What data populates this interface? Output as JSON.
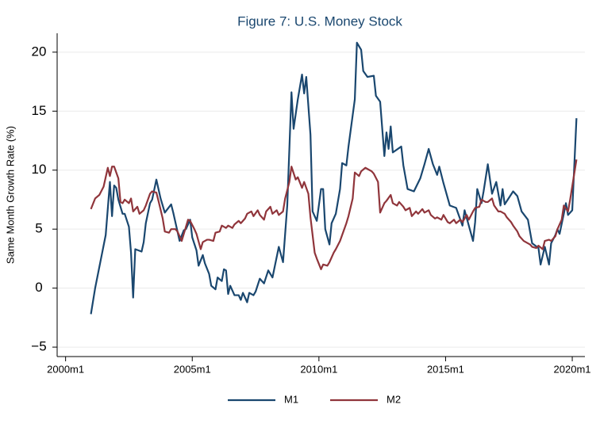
{
  "chart_data": {
    "type": "line",
    "title": "Figure 7: U.S. Money Stock",
    "y_label": "Same Month Growth Rate (%)",
    "xlim": [
      476,
      726
    ],
    "ylim": [
      -5.8,
      21.6
    ],
    "xticks": [
      {
        "value": 480,
        "label": "2000m1"
      },
      {
        "value": 540,
        "label": "2005m1"
      },
      {
        "value": 600,
        "label": "2010m1"
      },
      {
        "value": 660,
        "label": "2015m1"
      },
      {
        "value": 720,
        "label": "2020m1"
      }
    ],
    "yticks": [
      {
        "value": -5,
        "label": "−5"
      },
      0,
      5,
      10,
      15,
      20
    ],
    "grid": true,
    "legend": "bottom",
    "series": [
      {
        "name": "M1",
        "color": "#1a476f",
        "x": [
          492,
          494,
          499,
          501,
          502,
          503,
          504,
          505,
          507,
          508,
          510,
          511,
          512,
          513,
          516,
          517,
          518,
          520,
          521,
          523,
          525,
          527,
          530,
          531,
          533,
          534,
          536,
          537,
          539,
          540,
          542,
          543,
          545,
          546,
          548,
          549,
          551,
          552,
          554,
          555,
          556,
          557,
          558,
          560,
          562,
          563,
          564,
          566,
          567,
          569,
          570,
          572,
          574,
          576,
          578,
          581,
          583,
          585,
          587,
          588,
          590,
          592,
          593,
          594,
          596,
          597,
          599,
          601,
          602,
          603,
          605,
          606,
          608,
          610,
          611,
          613,
          614,
          617,
          618,
          620,
          621,
          623,
          626,
          627,
          629,
          631,
          632,
          633,
          634,
          635,
          639,
          640,
          642,
          645,
          648,
          650,
          652,
          654,
          656,
          657,
          659,
          662,
          665,
          668,
          669,
          673,
          674,
          675,
          677,
          678,
          680,
          682,
          684,
          686,
          687,
          688,
          692,
          694,
          696,
          699,
          701,
          704,
          705,
          707,
          709,
          710,
          712,
          713,
          714,
          716,
          717,
          718,
          720,
          722
        ],
        "values": [
          -2.2,
          0.0,
          4.5,
          9.0,
          6.1,
          8.7,
          8.5,
          7.5,
          6.3,
          6.3,
          5.2,
          3.0,
          -0.8,
          3.3,
          3.1,
          3.9,
          5.5,
          7.2,
          7.5,
          9.2,
          7.6,
          6.4,
          7.1,
          6.4,
          4.8,
          4.0,
          4.9,
          5.0,
          5.8,
          4.3,
          3.2,
          1.9,
          2.8,
          2.1,
          1.2,
          0.2,
          -0.1,
          0.9,
          0.6,
          1.6,
          1.5,
          -0.5,
          0.2,
          -0.6,
          -0.6,
          -1.0,
          -0.4,
          -1.2,
          -0.4,
          -0.6,
          -0.3,
          0.8,
          0.4,
          1.5,
          0.9,
          3.5,
          2.2,
          7.0,
          16.6,
          13.5,
          16.0,
          18.1,
          16.5,
          17.9,
          13.0,
          6.5,
          5.7,
          8.4,
          8.4,
          5.0,
          3.7,
          5.5,
          6.3,
          8.4,
          10.6,
          10.4,
          12.0,
          16.0,
          20.8,
          20.2,
          18.4,
          17.9,
          18.0,
          16.3,
          15.8,
          11.2,
          13.2,
          11.8,
          13.7,
          11.5,
          12.0,
          10.4,
          8.4,
          8.2,
          9.3,
          10.5,
          11.8,
          10.5,
          9.6,
          10.3,
          8.9,
          7.0,
          6.8,
          5.3,
          6.6,
          4.0,
          5.6,
          8.4,
          7.2,
          8.2,
          10.5,
          8.0,
          9.0,
          7.0,
          8.4,
          7.1,
          8.2,
          7.8,
          6.5,
          5.8,
          3.8,
          3.4,
          2.0,
          3.5,
          2.0,
          3.8,
          4.5,
          5.0,
          4.6,
          6.3,
          7.2,
          6.2,
          6.6,
          14.4
        ]
      },
      {
        "name": "M2",
        "color": "#90353b",
        "x": [
          492,
          494,
          496,
          498,
          500,
          501,
          502,
          503,
          505,
          506,
          507,
          508,
          510,
          511,
          512,
          514,
          515,
          517,
          518,
          520,
          521,
          523,
          524,
          526,
          527,
          529,
          530,
          532,
          533,
          535,
          536,
          538,
          539,
          541,
          542,
          544,
          545,
          547,
          548,
          550,
          551,
          553,
          554,
          556,
          557,
          559,
          560,
          562,
          563,
          565,
          566,
          568,
          569,
          571,
          572,
          574,
          575,
          577,
          578,
          580,
          581,
          583,
          584,
          586,
          587,
          589,
          590,
          592,
          593,
          595,
          596,
          598,
          599,
          601,
          602,
          604,
          605,
          607,
          608,
          610,
          611,
          613,
          614,
          616,
          617,
          619,
          620,
          622,
          623,
          625,
          626,
          628,
          629,
          631,
          632,
          634,
          635,
          637,
          638,
          640,
          641,
          643,
          644,
          646,
          647,
          649,
          650,
          652,
          653,
          655,
          656,
          658,
          659,
          661,
          662,
          664,
          665,
          667,
          668,
          670,
          671,
          673,
          674,
          676,
          677,
          679,
          680,
          682,
          683,
          685,
          686,
          688,
          689,
          691,
          692,
          694,
          695,
          697,
          698,
          700,
          701,
          703,
          704,
          706,
          707,
          709,
          710,
          712,
          713,
          715,
          716,
          718,
          719,
          722
        ],
        "values": [
          6.7,
          7.6,
          7.9,
          8.6,
          10.2,
          9.5,
          10.3,
          10.3,
          9.3,
          7.3,
          7.2,
          7.5,
          7.2,
          7.6,
          6.5,
          6.9,
          6.3,
          6.6,
          7.0,
          8.0,
          8.2,
          8.1,
          7.4,
          5.9,
          4.8,
          4.7,
          5.0,
          5.0,
          4.8,
          4.0,
          4.6,
          5.8,
          5.7,
          5.0,
          4.6,
          3.3,
          3.9,
          4.1,
          4.1,
          4.0,
          4.7,
          4.8,
          5.3,
          5.1,
          5.3,
          5.1,
          5.4,
          5.7,
          5.5,
          5.9,
          6.3,
          6.5,
          6.1,
          6.6,
          6.2,
          5.8,
          6.5,
          6.9,
          6.3,
          6.6,
          6.2,
          6.5,
          7.6,
          9.0,
          10.3,
          9.2,
          9.4,
          8.5,
          9.0,
          8.0,
          6.0,
          3.0,
          2.5,
          1.6,
          2.0,
          1.9,
          2.2,
          3.0,
          3.3,
          4.0,
          4.5,
          5.5,
          6.1,
          7.6,
          9.8,
          9.5,
          9.9,
          10.2,
          10.1,
          9.9,
          9.7,
          9.0,
          6.4,
          7.2,
          7.4,
          7.9,
          7.2,
          7.0,
          7.3,
          6.9,
          6.6,
          6.8,
          6.1,
          6.5,
          6.3,
          6.7,
          6.4,
          6.6,
          6.2,
          5.9,
          6.0,
          5.8,
          6.2,
          5.6,
          5.5,
          5.8,
          5.5,
          5.8,
          5.6,
          6.2,
          5.8,
          6.5,
          6.8,
          6.9,
          7.5,
          7.3,
          7.3,
          7.6,
          7.0,
          6.5,
          6.5,
          6.3,
          6.0,
          5.6,
          5.3,
          4.8,
          4.4,
          4.0,
          3.9,
          3.7,
          3.5,
          3.4,
          3.6,
          3.3,
          4.0,
          4.1,
          4.0,
          4.4,
          5.0,
          5.8,
          7.0,
          6.5,
          7.5,
          10.9
        ]
      }
    ]
  }
}
